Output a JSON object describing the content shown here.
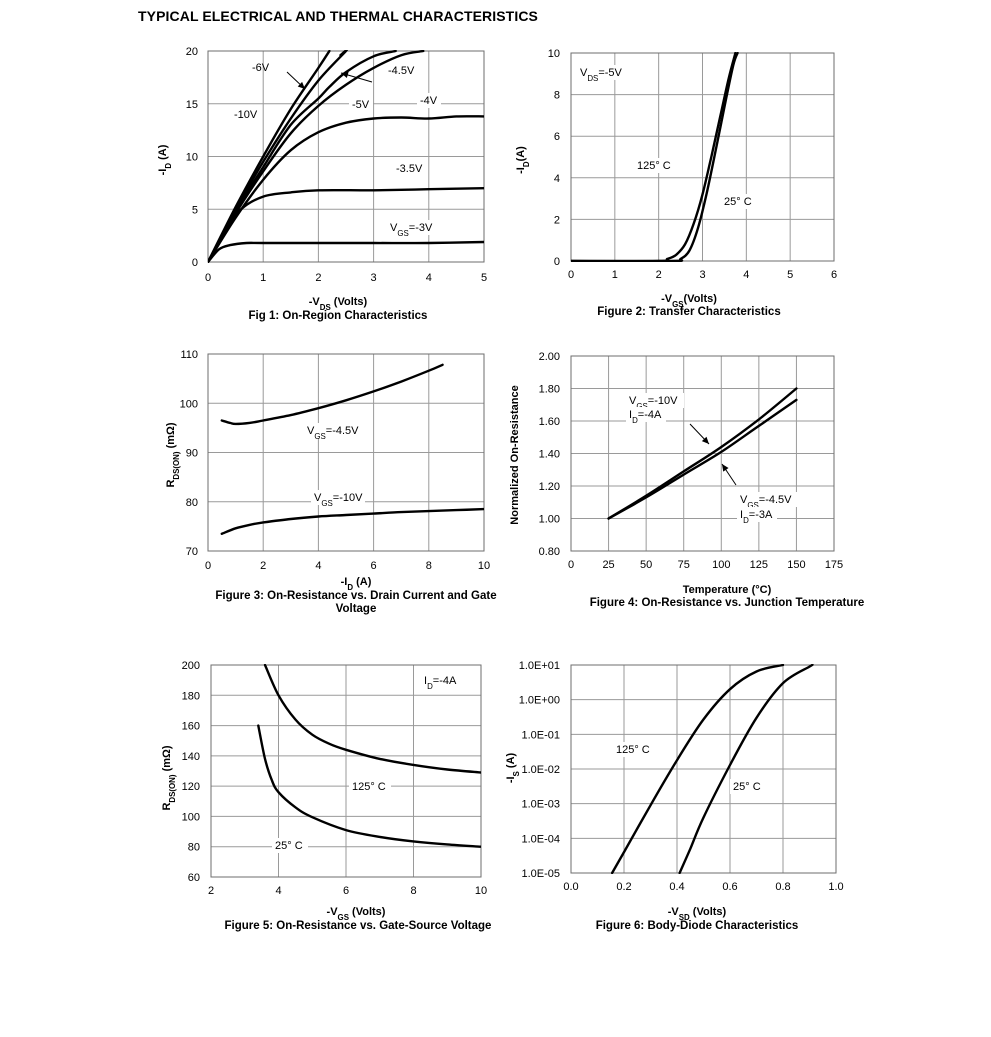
{
  "page_title": "TYPICAL ELECTRICAL AND THERMAL CHARACTERISTICS",
  "chart_data": [
    {
      "id": "fig1",
      "type": "line",
      "caption": "Fig 1: On-Region Characteristics",
      "xlabel": "-V_{DS} (Volts)",
      "ylabel": "-I_{D} (A)",
      "xlim": [
        0,
        5
      ],
      "ylim": [
        0,
        20
      ],
      "xticks": [
        "0",
        "1",
        "2",
        "3",
        "4",
        "5"
      ],
      "yticks": [
        "0",
        "5",
        "10",
        "15",
        "20"
      ],
      "grid": true,
      "series": [
        {
          "name": "-10V",
          "x": [
            0,
            0.5,
            1.0,
            1.5,
            2.0,
            2.2
          ],
          "y": [
            0,
            5.2,
            10.0,
            14.5,
            18.4,
            20
          ]
        },
        {
          "name": "-6V",
          "x": [
            0,
            0.5,
            1.0,
            1.5,
            2.0,
            2.5,
            2.4
          ],
          "y": [
            0,
            5.0,
            9.5,
            13.6,
            17.2,
            20,
            19.6
          ]
        },
        {
          "name": "-5V",
          "x": [
            0,
            0.5,
            1.0,
            1.5,
            2.0,
            2.2,
            2.5,
            3.0,
            3.4
          ],
          "y": [
            0,
            4.8,
            9.0,
            13.0,
            15.5,
            16.6,
            18.0,
            19.5,
            20
          ]
        },
        {
          "name": "-4.5V",
          "x": [
            0,
            0.5,
            1.0,
            1.5,
            2.0,
            2.5,
            3.0,
            3.5,
            3.9
          ],
          "y": [
            0,
            4.6,
            8.6,
            12.2,
            14.8,
            16.8,
            18.4,
            19.6,
            20
          ]
        },
        {
          "name": "-4V",
          "x": [
            0,
            0.5,
            1.0,
            1.5,
            2.0,
            2.5,
            3.0,
            3.5,
            4.0,
            4.5,
            5.0
          ],
          "y": [
            0,
            4.2,
            7.8,
            10.6,
            12.3,
            13.2,
            13.6,
            13.7,
            13.6,
            13.8,
            13.8
          ]
        },
        {
          "name": "-3.5V",
          "x": [
            0,
            0.3,
            0.6,
            1.0,
            1.5,
            2.0,
            3.0,
            4.0,
            5.0
          ],
          "y": [
            0,
            2.8,
            5.0,
            6.2,
            6.6,
            6.8,
            6.8,
            6.9,
            7.0
          ]
        },
        {
          "name": "V_{GS}=-3V",
          "x": [
            0,
            0.2,
            0.4,
            0.7,
            1.0,
            2.0,
            3.0,
            4.0,
            5.0
          ],
          "y": [
            0,
            1.2,
            1.6,
            1.8,
            1.8,
            1.8,
            1.8,
            1.8,
            1.9
          ]
        }
      ]
    },
    {
      "id": "fig2",
      "type": "line",
      "caption": "Figure 2: Transfer Characteristics",
      "xlabel": "-V_{GS}(Volts)",
      "ylabel": "-I_{D}(A)",
      "xlim": [
        0,
        6
      ],
      "ylim": [
        0,
        10
      ],
      "xticks": [
        "0",
        "1",
        "2",
        "3",
        "4",
        "5",
        "6"
      ],
      "yticks": [
        "0",
        "2",
        "4",
        "6",
        "8",
        "10"
      ],
      "grid": true,
      "annotation": "V_{DS}=-5V",
      "series": [
        {
          "name": "125° C",
          "x": [
            0,
            2.0,
            2.2,
            2.4,
            2.6,
            2.8,
            3.0,
            3.2,
            3.4,
            3.6,
            3.75
          ],
          "y": [
            0,
            0,
            0.1,
            0.3,
            0.8,
            1.8,
            3.2,
            5.0,
            6.9,
            8.8,
            10
          ]
        },
        {
          "name": "25° C",
          "x": [
            0,
            2.3,
            2.5,
            2.7,
            2.9,
            3.1,
            3.3,
            3.5,
            3.7,
            3.8
          ],
          "y": [
            0,
            0,
            0.1,
            0.5,
            1.6,
            3.3,
            5.3,
            7.4,
            9.4,
            10
          ]
        }
      ]
    },
    {
      "id": "fig3",
      "type": "line",
      "caption": "Figure 3: On-Resistance vs. Drain Current and Gate Voltage",
      "caption_line1": "Figure 3: On-Resistance vs. Drain Current and Gate",
      "caption_line2": "Voltage",
      "xlabel": "-I_{D} (A)",
      "ylabel": "R_{DS(ON)} (mΩ)",
      "xlim": [
        0,
        10
      ],
      "ylim": [
        70,
        110
      ],
      "xticks": [
        "0",
        "2",
        "4",
        "6",
        "8",
        "10"
      ],
      "yticks": [
        "70",
        "80",
        "90",
        "100",
        "110"
      ],
      "grid": true,
      "series": [
        {
          "name": "V_{GS}=-4.5V",
          "x": [
            0.5,
            0.8,
            1.0,
            1.5,
            2.0,
            3.0,
            4.0,
            5.0,
            6.0,
            7.0,
            8.0,
            8.5
          ],
          "y": [
            96.5,
            96.0,
            95.8,
            96.0,
            96.5,
            97.6,
            99.0,
            100.6,
            102.4,
            104.4,
            106.6,
            107.8
          ]
        },
        {
          "name": "V_{GS}=-10V",
          "x": [
            0.5,
            1.0,
            1.5,
            2.0,
            3.0,
            4.0,
            5.0,
            6.0,
            7.0,
            8.0,
            9.0,
            10.0
          ],
          "y": [
            73.5,
            74.6,
            75.3,
            75.8,
            76.5,
            77.0,
            77.3,
            77.6,
            77.9,
            78.1,
            78.3,
            78.5
          ]
        }
      ]
    },
    {
      "id": "fig4",
      "type": "line",
      "caption": "Figure 4: On-Resistance vs. Junction Temperature",
      "xlabel": "Temperature (°C)",
      "ylabel": "Normalized On-Resistance",
      "xlim": [
        0,
        175
      ],
      "ylim": [
        0.8,
        2.0
      ],
      "xticks": [
        "0",
        "25",
        "50",
        "75",
        "100",
        "125",
        "150",
        "175"
      ],
      "yticks": [
        "0.80",
        "1.00",
        "1.20",
        "1.40",
        "1.60",
        "1.80",
        "2.00"
      ],
      "grid": true,
      "series": [
        {
          "name": "V_{GS}=-10V I_{D}=-4A",
          "x": [
            25,
            50,
            75,
            100,
            125,
            150
          ],
          "y": [
            1.0,
            1.14,
            1.29,
            1.44,
            1.61,
            1.8
          ]
        },
        {
          "name": "V_{GS}=-4.5V I_{D}=-3A",
          "x": [
            25,
            50,
            75,
            100,
            125,
            150
          ],
          "y": [
            1.0,
            1.13,
            1.27,
            1.41,
            1.57,
            1.73
          ]
        }
      ]
    },
    {
      "id": "fig5",
      "type": "line",
      "caption": "Figure 5: On-Resistance vs. Gate-Source Voltage",
      "xlabel": "-V_{GS} (Volts)",
      "ylabel": "R_{DS(ON)} (mΩ)",
      "xlim": [
        2,
        10
      ],
      "ylim": [
        60,
        200
      ],
      "xticks": [
        "2",
        "4",
        "6",
        "8",
        "10"
      ],
      "yticks": [
        "60",
        "80",
        "100",
        "120",
        "140",
        "160",
        "180",
        "200"
      ],
      "grid": true,
      "annotation": "I_{D}=-4A",
      "series": [
        {
          "name": "125° C",
          "x": [
            3.6,
            4.0,
            4.5,
            5.0,
            5.5,
            6.0,
            7.0,
            8.0,
            9.0,
            10.0
          ],
          "y": [
            200,
            180,
            164,
            154,
            148,
            144,
            138,
            134,
            131,
            129
          ]
        },
        {
          "name": "25° C",
          "x": [
            3.4,
            3.6,
            3.8,
            4.0,
            4.5,
            5.0,
            6.0,
            7.0,
            8.0,
            9.0,
            10.0
          ],
          "y": [
            160,
            138,
            124,
            116,
            106,
            99.5,
            91,
            86.5,
            83.5,
            81.5,
            80
          ]
        }
      ]
    },
    {
      "id": "fig6",
      "type": "line",
      "caption": "Figure 6: Body-Diode Characteristics",
      "xlabel": "-V_{SD} (Volts)",
      "ylabel": "-I_{S} (A)",
      "xlim": [
        0.0,
        1.0
      ],
      "ylim": [
        1e-05,
        10
      ],
      "yscale": "log",
      "xticks": [
        "0.0",
        "0.2",
        "0.4",
        "0.6",
        "0.8",
        "1.0"
      ],
      "yticks": [
        "1.0E-05",
        "1.0E-04",
        "1.0E-03",
        "1.0E-02",
        "1.0E-01",
        "1.0E+00",
        "1.0E+01"
      ],
      "grid": true,
      "series": [
        {
          "name": "125° C",
          "x": [
            0.155,
            0.2,
            0.3,
            0.4,
            0.5,
            0.6,
            0.7,
            0.8
          ],
          "y": [
            1e-05,
            4e-05,
            0.0009,
            0.018,
            0.27,
            2.0,
            6.5,
            10
          ]
        },
        {
          "name": "25° C",
          "x": [
            0.41,
            0.45,
            0.5,
            0.6,
            0.7,
            0.8,
            0.9,
            0.91
          ],
          "y": [
            1e-05,
            5e-05,
            0.0004,
            0.013,
            0.3,
            3.0,
            9.0,
            10
          ]
        }
      ]
    }
  ]
}
